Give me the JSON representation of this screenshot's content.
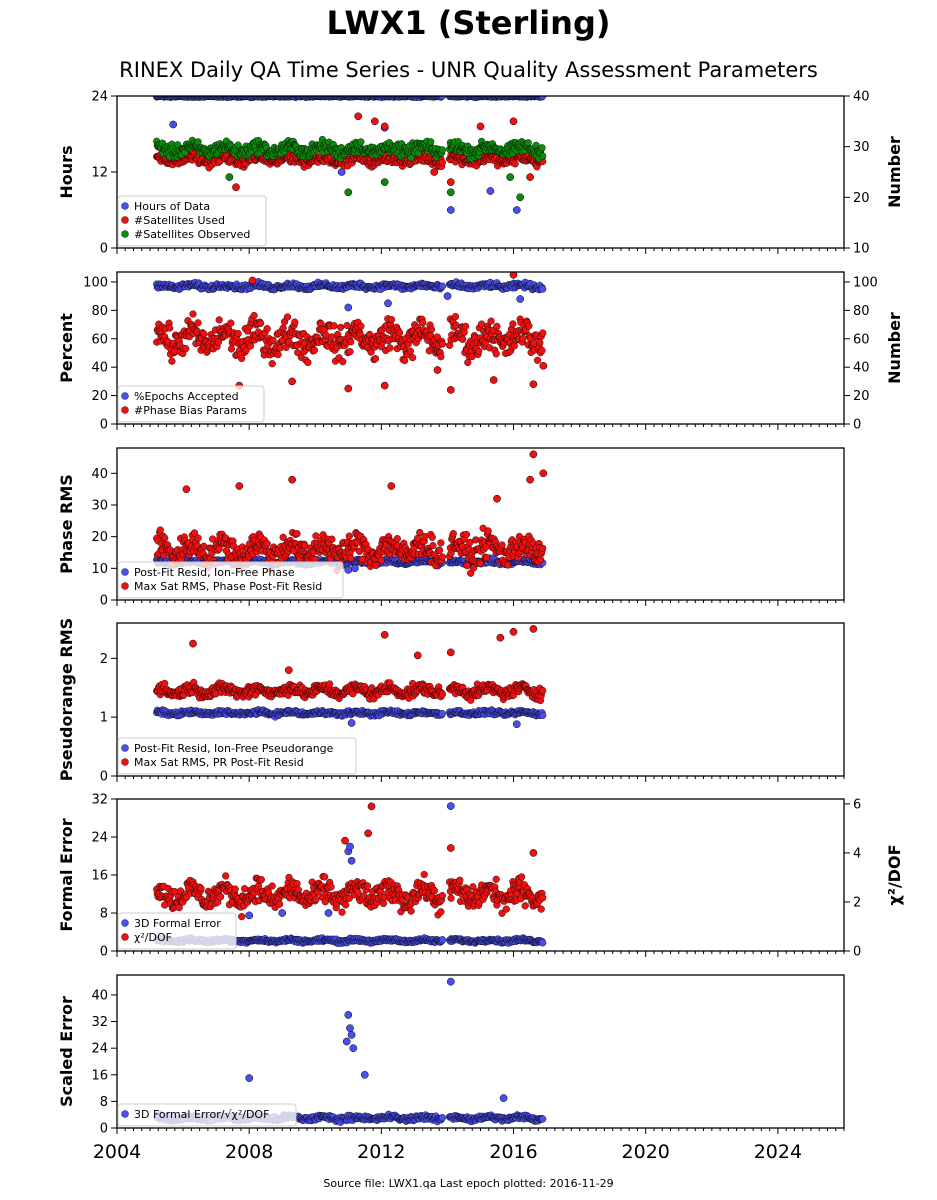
{
  "title": "LWX1 (Sterling)",
  "subtitle": "RINEX Daily QA Time Series - UNR Quality Assessment Parameters",
  "source": "Source file: LWX1.qa Last epoch plotted: 2016-11-29",
  "colors": {
    "blue": "#4a4ef0",
    "red": "#ee1111",
    "green": "#0d8a0d",
    "edge": "#000000"
  },
  "chart_data": [
    {
      "type": "scatter",
      "ylabel": "Hours",
      "y2label": "Number",
      "ylim": [
        0,
        24
      ],
      "y2lim": [
        10,
        40
      ],
      "xlim": [
        2004,
        2026
      ],
      "yticks": [
        "0",
        "12",
        "24"
      ],
      "y2ticks": [
        "10",
        "20",
        "30",
        "40"
      ],
      "legend": "lower-left",
      "series": [
        {
          "name": "Hours of Data",
          "color": "blue",
          "axis": "left",
          "typical": 24,
          "spread": 0.3,
          "outliers": [
            [
              2005.7,
              19.5
            ],
            [
              2010.8,
              12
            ],
            [
              2012.1,
              19
            ],
            [
              2013.6,
              14
            ],
            [
              2014.1,
              6
            ],
            [
              2015.3,
              9
            ],
            [
              2015.9,
              16
            ],
            [
              2016.1,
              6
            ],
            [
              2016.4,
              14
            ]
          ]
        },
        {
          "name": "#Satellites Used",
          "color": "red",
          "axis": "right",
          "typical": 27.5,
          "spread": 0.8,
          "outliers": [
            [
              2007.6,
              22
            ],
            [
              2011.3,
              36
            ],
            [
              2011.8,
              35
            ],
            [
              2012.1,
              34
            ],
            [
              2013.6,
              25
            ],
            [
              2014.1,
              23
            ],
            [
              2015.0,
              34
            ],
            [
              2016.0,
              35
            ],
            [
              2016.5,
              24
            ]
          ]
        },
        {
          "name": "#Satellites Observed",
          "color": "green",
          "axis": "right",
          "typical": 29.5,
          "spread": 1.0,
          "outliers": [
            [
              2007.4,
              24
            ],
            [
              2011.0,
              21
            ],
            [
              2012.1,
              23
            ],
            [
              2014.1,
              21
            ],
            [
              2015.9,
              24
            ],
            [
              2016.2,
              20
            ]
          ]
        }
      ]
    },
    {
      "type": "scatter",
      "ylabel": "Percent",
      "y2label": "Number",
      "ylim": [
        0,
        107
      ],
      "y2lim": [
        0,
        107
      ],
      "xlim": [
        2004,
        2026
      ],
      "yticks": [
        "0",
        "20",
        "40",
        "60",
        "80",
        "100"
      ],
      "y2ticks": [
        "0",
        "20",
        "40",
        "60",
        "80",
        "100"
      ],
      "legend": "lower-left",
      "series": [
        {
          "name": "%Epochs Accepted",
          "color": "blue",
          "axis": "left",
          "typical": 97,
          "spread": 1.5,
          "outliers": [
            [
              2011.0,
              82
            ],
            [
              2012.2,
              85
            ],
            [
              2014.0,
              90
            ],
            [
              2016.2,
              88
            ]
          ]
        },
        {
          "name": "#Phase Bias Params",
          "color": "red",
          "axis": "right",
          "typical": 60,
          "spread": 9,
          "outliers": [
            [
              2007.7,
              27
            ],
            [
              2009.3,
              30
            ],
            [
              2011.0,
              25
            ],
            [
              2012.1,
              27
            ],
            [
              2013.7,
              38
            ],
            [
              2014.1,
              24
            ],
            [
              2015.4,
              31
            ],
            [
              2016.0,
              105
            ],
            [
              2016.6,
              28
            ],
            [
              2016.9,
              41
            ],
            [
              2008.1,
              101
            ]
          ]
        }
      ]
    },
    {
      "type": "scatter",
      "ylabel": "Phase RMS",
      "ylim": [
        0,
        48
      ],
      "xlim": [
        2004,
        2026
      ],
      "yticks": [
        "0",
        "10",
        "20",
        "30",
        "40"
      ],
      "legend": "lower-left",
      "series": [
        {
          "name": "Post-Fit Resid, Ion-Free Phase",
          "color": "blue",
          "axis": "left",
          "typical": 12,
          "spread": 0.6,
          "outliers": [
            [
              2011.0,
              9.5
            ],
            [
              2011.2,
              10
            ]
          ]
        },
        {
          "name": "Max Sat RMS, Phase Post-Fit Resid",
          "color": "red",
          "axis": "left",
          "typical": 16,
          "spread": 3.5,
          "outliers": [
            [
              2006.1,
              35
            ],
            [
              2009.3,
              38
            ],
            [
              2007.7,
              36
            ],
            [
              2012.3,
              36
            ],
            [
              2016.6,
              46
            ],
            [
              2016.9,
              40
            ],
            [
              2016.5,
              38
            ],
            [
              2015.5,
              32
            ]
          ]
        }
      ]
    },
    {
      "type": "scatter",
      "ylabel": "Pseudorange RMS",
      "ylim": [
        0,
        2.6
      ],
      "xlim": [
        2004,
        2026
      ],
      "yticks": [
        "0",
        "1",
        "2"
      ],
      "legend": "lower-left",
      "series": [
        {
          "name": "Post-Fit Resid, Ion-Free Pseudorange",
          "color": "blue",
          "axis": "left",
          "typical": 1.07,
          "spread": 0.03,
          "outliers": [
            [
              2011.1,
              0.9
            ],
            [
              2016.1,
              0.88
            ]
          ]
        },
        {
          "name": "Max Sat RMS, PR Post-Fit Resid",
          "color": "red",
          "axis": "left",
          "typical": 1.45,
          "spread": 0.08,
          "outliers": [
            [
              2006.3,
              2.25
            ],
            [
              2012.1,
              2.4
            ],
            [
              2013.1,
              2.05
            ],
            [
              2014.1,
              2.1
            ],
            [
              2015.6,
              2.35
            ],
            [
              2016.0,
              2.45
            ],
            [
              2016.6,
              2.5
            ],
            [
              2009.2,
              1.8
            ]
          ]
        }
      ]
    },
    {
      "type": "scatter",
      "ylabel": "Formal Error",
      "y2label": "χ²/DOF",
      "ylim": [
        0,
        32
      ],
      "y2lim": [
        0,
        6.2
      ],
      "xlim": [
        2004,
        2026
      ],
      "yticks": [
        "0",
        "8",
        "16",
        "24",
        "32"
      ],
      "y2ticks": [
        "0",
        "2",
        "4",
        "6"
      ],
      "legend": "lower-left",
      "series": [
        {
          "name": "3D Formal Error",
          "color": "blue",
          "axis": "left",
          "typical": 2.2,
          "spread": 0.3,
          "outliers": [
            [
              2011.0,
              21
            ],
            [
              2011.1,
              19
            ],
            [
              2011.05,
              22
            ],
            [
              2014.1,
              30.5
            ],
            [
              2008.0,
              7.5
            ],
            [
              2009.0,
              8
            ],
            [
              2010.4,
              8
            ]
          ]
        },
        {
          "name": "χ²/DOF",
          "color": "red",
          "axis": "right",
          "typical": 2.3,
          "spread": 0.4,
          "outliers": [
            [
              2011.7,
              5.9
            ],
            [
              2011.6,
              4.8
            ],
            [
              2010.9,
              4.5
            ],
            [
              2014.1,
              4.2
            ],
            [
              2016.6,
              4.0
            ]
          ]
        }
      ]
    },
    {
      "type": "scatter",
      "ylabel": "Scaled Error",
      "ylim": [
        0,
        46
      ],
      "xlim": [
        2004,
        2026
      ],
      "yticks": [
        "0",
        "8",
        "16",
        "24",
        "32",
        "40"
      ],
      "xticks": [
        "2004",
        "2008",
        "2012",
        "2016",
        "2020",
        "2024"
      ],
      "legend": "lower-left",
      "series": [
        {
          "name": "3D Formal Error/√χ²/DOF",
          "color": "blue",
          "axis": "left",
          "typical": 3,
          "spread": 0.6,
          "outliers": [
            [
              2011.0,
              34
            ],
            [
              2011.05,
              30
            ],
            [
              2011.1,
              28
            ],
            [
              2010.95,
              26
            ],
            [
              2011.15,
              24
            ],
            [
              2014.1,
              44
            ],
            [
              2015.7,
              9
            ],
            [
              2011.5,
              16
            ],
            [
              2008.0,
              15
            ]
          ]
        }
      ]
    }
  ]
}
